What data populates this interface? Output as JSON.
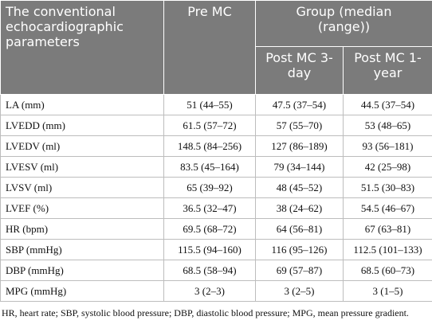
{
  "table": {
    "header": {
      "parameter": "The conventional echocardiographic parameters",
      "pre": "Pre MC",
      "group": "Group (median (range))",
      "post3": "Post MC 3-day",
      "post1": "Post MC 1-year"
    },
    "rows": [
      [
        "LA (mm)",
        "51 (44–55)",
        "47.5 (37–54)",
        "44.5 (37–54)"
      ],
      [
        "LVEDD (mm)",
        "61.5 (57–72)",
        "57 (55–70)",
        "53 (48–65)"
      ],
      [
        "LVEDV (ml)",
        "148.5 (84–256)",
        "127 (86–189)",
        "93 (56–181)"
      ],
      [
        "LVESV (ml)",
        "83.5 (45–164)",
        "79 (34–144)",
        "42 (25–98)"
      ],
      [
        "LVSV (ml)",
        "65 (39–92)",
        "48 (45–52)",
        "51.5 (30–83)"
      ],
      [
        "LVEF (%)",
        "36.5 (32–47)",
        "38 (24–62)",
        "54.5 (46–67)"
      ],
      [
        "HR (bpm)",
        "69.5 (68–72)",
        "64 (56–81)",
        "67 (63–81)"
      ],
      [
        "SBP (mmHg)",
        "115.5 (94–160)",
        "116 (95–126)",
        "112.5 (101–133)"
      ],
      [
        "DBP (mmHg)",
        "68.5 (58–94)",
        "69 (57–87)",
        "68.5 (60–73)"
      ],
      [
        "MPG (mmHg)",
        "3 (2–3)",
        "3 (2–5)",
        "3 (1–5)"
      ]
    ]
  },
  "footnote": "HR, heart rate; SBP, systolic blood pressure;  DBP, diastolic blood pressure; MPG, mean pressure gradient."
}
